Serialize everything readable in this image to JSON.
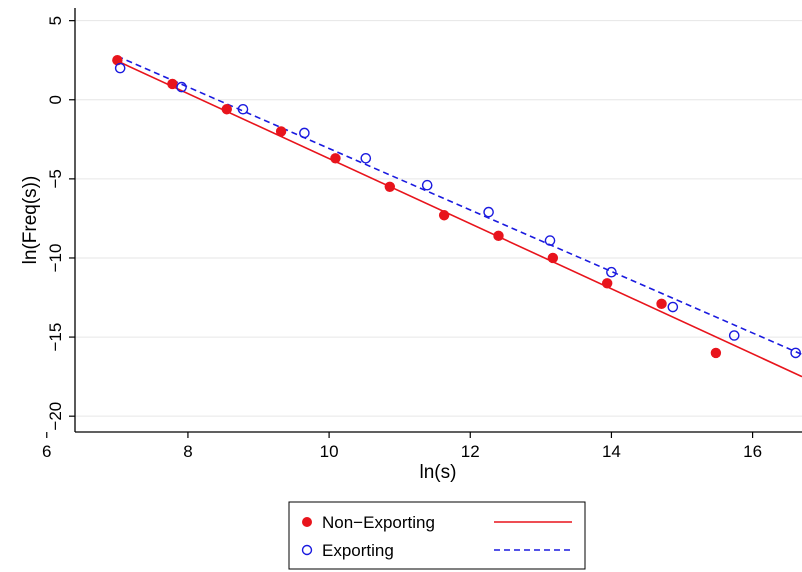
{
  "chart_data": {
    "type": "scatter",
    "title": "",
    "xlabel": "ln(s)",
    "ylabel": "ln(Freq(s))",
    "xlim": [
      6.4,
      16.7
    ],
    "ylim": [
      -21.0,
      5.8
    ],
    "x_ticks": [
      6,
      8,
      10,
      12,
      14,
      16
    ],
    "y_ticks": [
      5,
      0,
      -5,
      -10,
      -15,
      -20
    ],
    "x_tick_labels": [
      "6",
      "8",
      "10",
      "12",
      "14",
      "16"
    ],
    "y_tick_labels": [
      "5",
      "0",
      "−5",
      "−10",
      "−15",
      "−20"
    ],
    "grid": true,
    "legend_position": "bottom",
    "series": [
      {
        "name": "Non−Exporting",
        "marker": "filled-circle",
        "color": "#e8141c",
        "x": [
          7.0,
          7.78,
          8.55,
          9.32,
          10.09,
          10.86,
          11.63,
          12.4,
          13.17,
          13.94,
          14.71,
          15.48
        ],
        "y": [
          2.5,
          1.0,
          -0.6,
          -2.0,
          -3.7,
          -5.5,
          -7.3,
          -8.6,
          -10.0,
          -11.6,
          -12.9,
          -16.0
        ]
      },
      {
        "name": "Exporting",
        "marker": "hollow-circle",
        "color": "#1a1adf",
        "x": [
          7.04,
          7.91,
          8.78,
          9.65,
          10.52,
          11.39,
          12.26,
          13.13,
          14.0,
          14.87,
          15.74,
          16.61
        ],
        "y": [
          2.0,
          0.8,
          -0.6,
          -2.1,
          -3.7,
          -5.4,
          -7.1,
          -8.9,
          -10.9,
          -13.1,
          -14.9,
          -16.0
        ]
      }
    ],
    "fit_lines": [
      {
        "name": "Non−Exporting",
        "style": "solid",
        "color": "#e8141c",
        "x": [
          7.0,
          16.7
        ],
        "y": [
          2.45,
          -17.5
        ]
      },
      {
        "name": "Exporting",
        "style": "dashed",
        "color": "#1a1adf",
        "x": [
          7.0,
          16.7
        ],
        "y": [
          2.75,
          -16.1
        ]
      }
    ]
  }
}
